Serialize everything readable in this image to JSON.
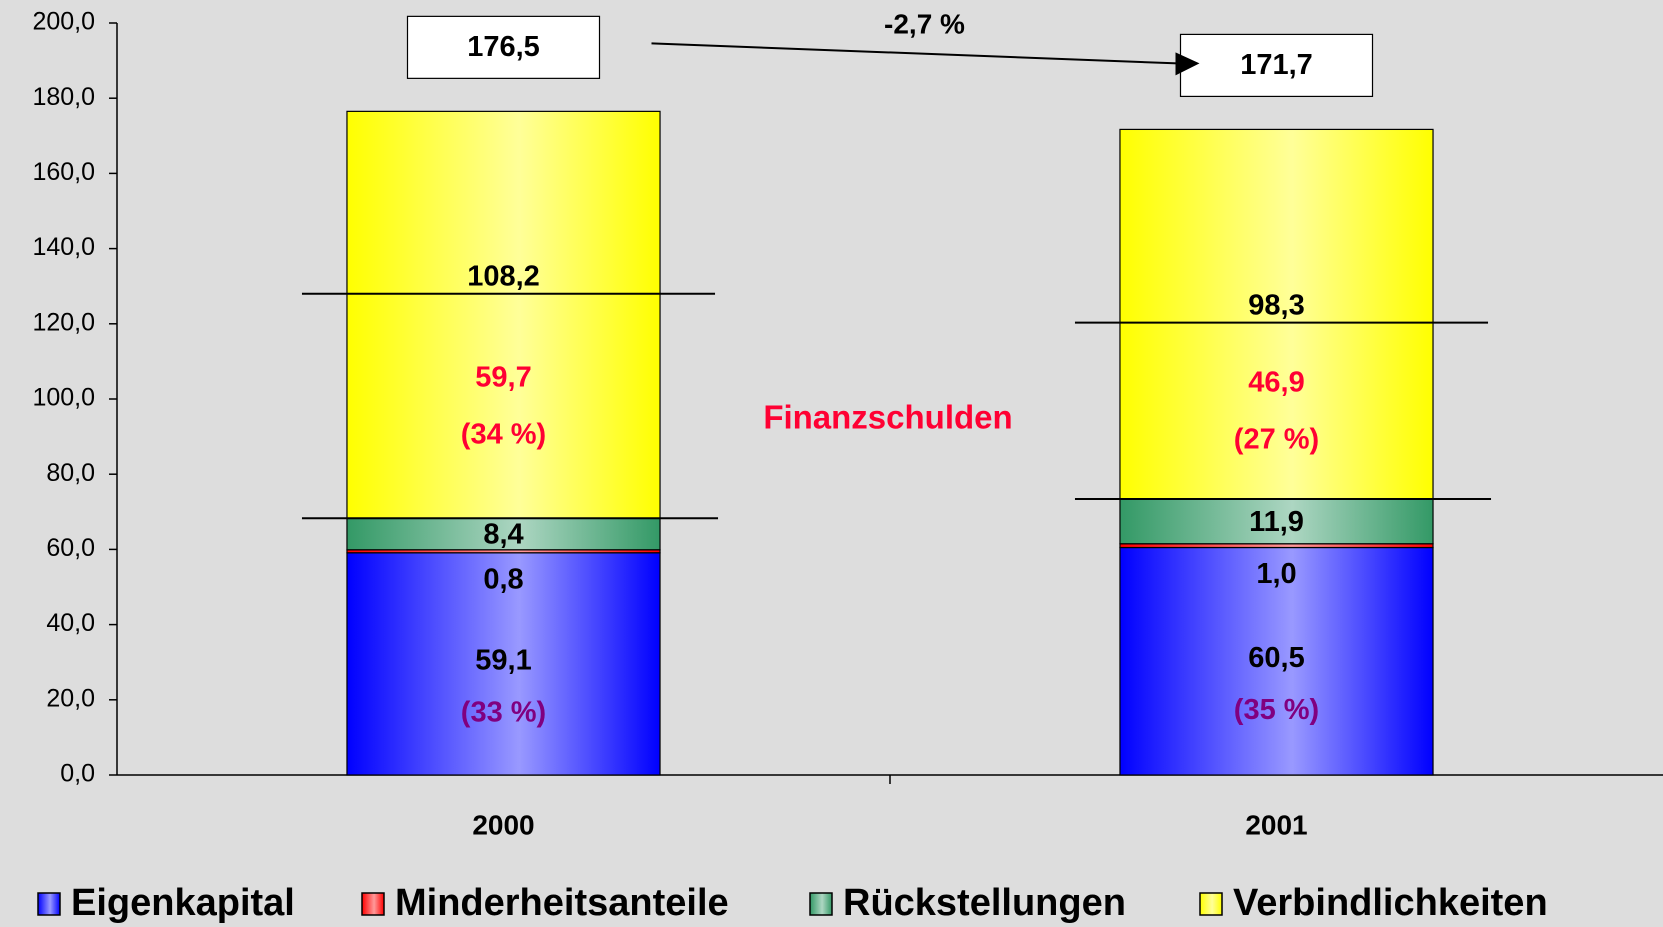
{
  "chart_data": {
    "type": "bar",
    "stacked": true,
    "categories": [
      "2000",
      "2001"
    ],
    "series": [
      {
        "name": "Eigenkapital",
        "color": "#0000ff",
        "values": [
          59.1,
          60.5
        ],
        "value_labels": [
          "59,1",
          "60,5"
        ]
      },
      {
        "name": "Minderheitsanteile",
        "color": "#ff0000",
        "values": [
          0.8,
          1.0
        ],
        "value_labels": [
          "0,8",
          "1,0"
        ]
      },
      {
        "name": "Rückstellungen",
        "color": "#339966",
        "values": [
          8.4,
          11.9
        ],
        "value_labels": [
          "8,4",
          "11,9"
        ]
      },
      {
        "name": "Verbindlichkeiten",
        "color": "#ffff00",
        "values": [
          108.2,
          98.3
        ],
        "value_labels": [
          "108,2",
          "98,3"
        ]
      }
    ],
    "totals": {
      "values": [
        176.5,
        171.7
      ],
      "value_labels": [
        "176,5",
        "171,7"
      ]
    },
    "change": {
      "value": -2.7,
      "label": "-2,7 %"
    },
    "finanzschulden": {
      "title": "Finanzschulden",
      "values": [
        59.7,
        46.9
      ],
      "value_labels": [
        "59,7",
        "46,9"
      ],
      "shares": [
        34,
        27
      ],
      "share_labels": [
        "(34 %)",
        "(27 %)"
      ]
    },
    "equity_shares": {
      "values": [
        33,
        35
      ],
      "labels": [
        "(33 %)",
        "(35 %)"
      ]
    },
    "ylim": [
      0,
      200
    ],
    "yticks": [
      {
        "value": 0,
        "label": "0,0"
      },
      {
        "value": 20,
        "label": "20,0"
      },
      {
        "value": 40,
        "label": "40,0"
      },
      {
        "value": 60,
        "label": "60,0"
      },
      {
        "value": 80,
        "label": "80,0"
      },
      {
        "value": 100,
        "label": "100,0"
      },
      {
        "value": 120,
        "label": "120,0"
      },
      {
        "value": 140,
        "label": "140,0"
      },
      {
        "value": 160,
        "label": "160,0"
      },
      {
        "value": 180,
        "label": "180,0"
      },
      {
        "value": 200,
        "label": "200,0"
      }
    ],
    "legend": "bottom"
  }
}
